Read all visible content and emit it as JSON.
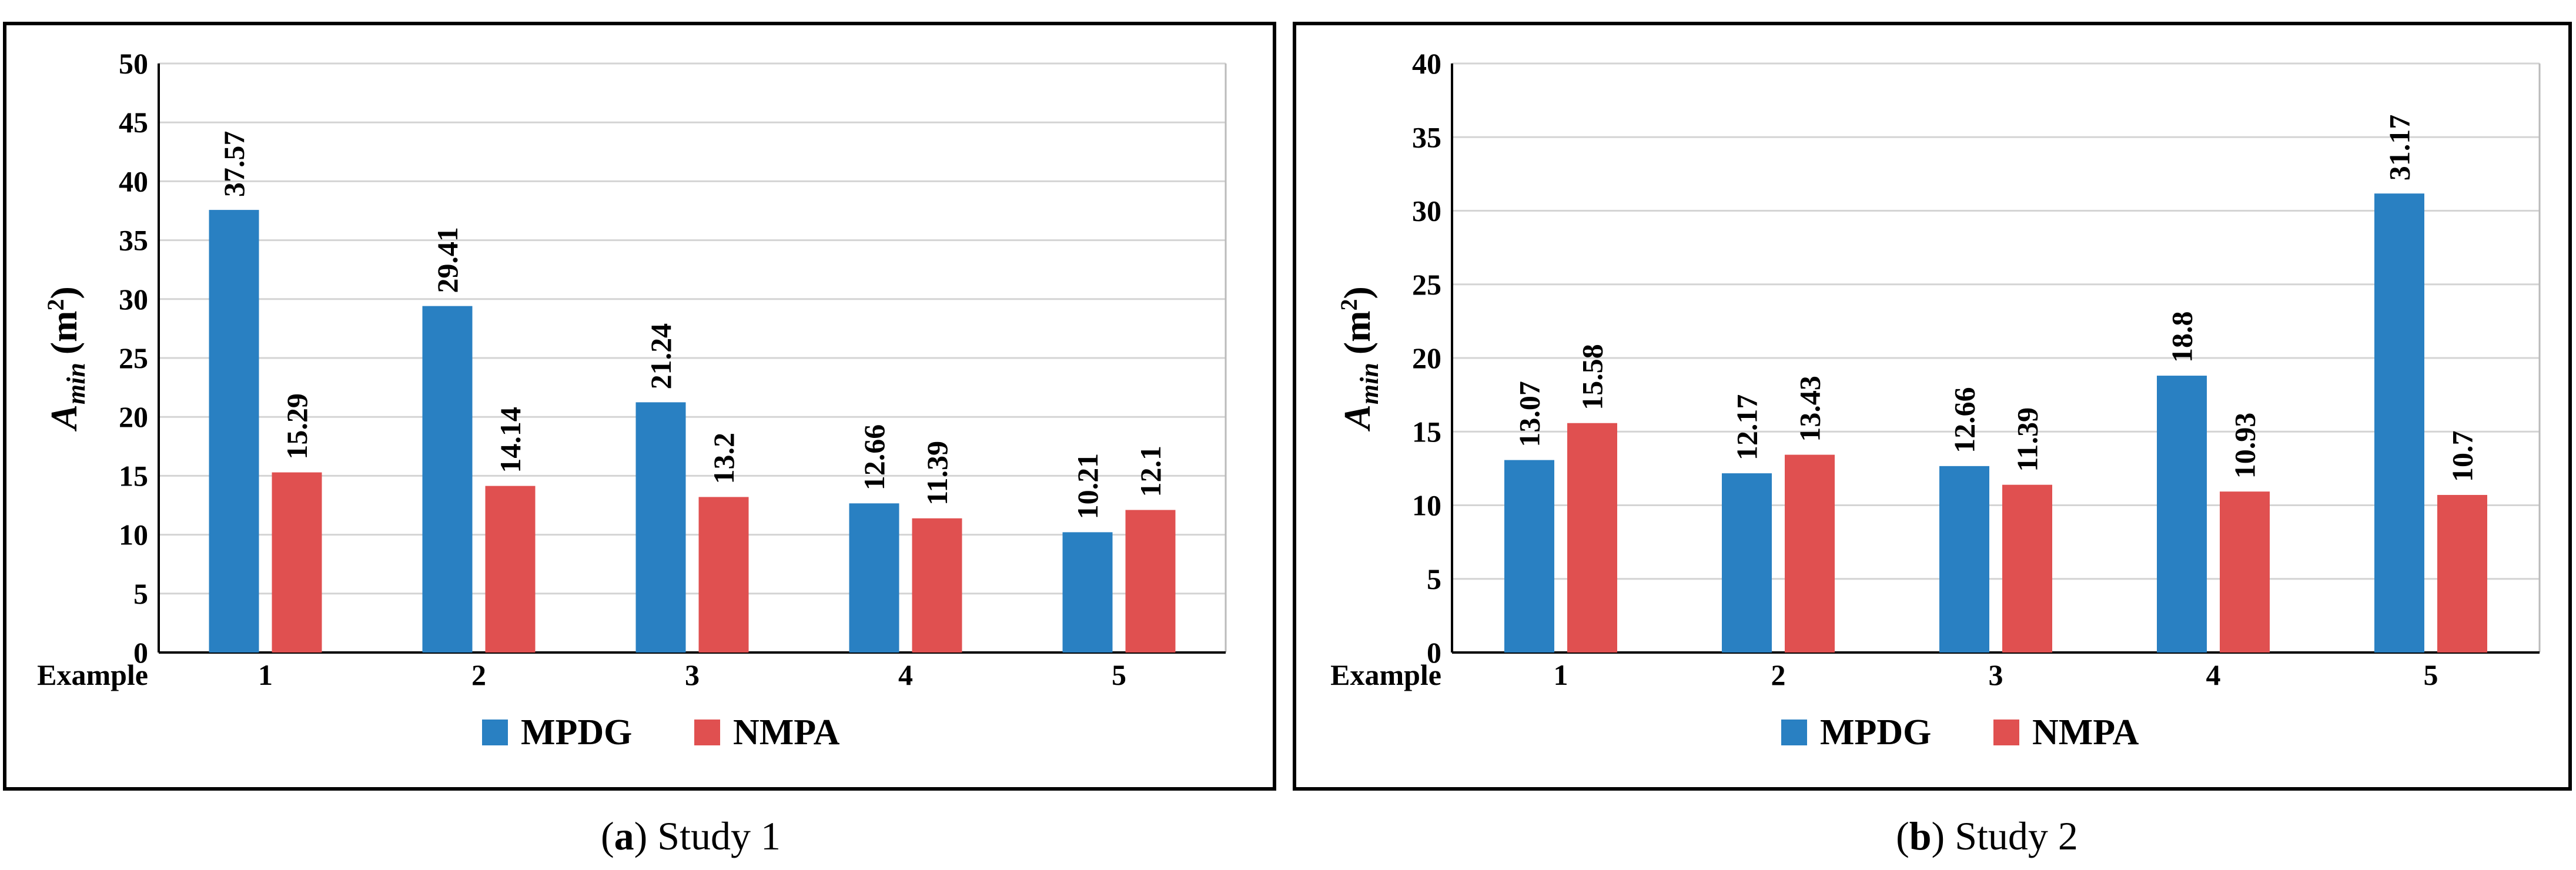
{
  "colors": {
    "MPDG": "#2980c2",
    "NMPA": "#e05050",
    "grid": "#d4d4d4"
  },
  "chart_data": [
    {
      "type": "bar",
      "panel": "a",
      "caption_letter": "a",
      "caption_text": "Study 1",
      "xcat_title": "Example",
      "categories": [
        "1",
        "2",
        "3",
        "4",
        "5"
      ],
      "series": [
        {
          "name": "MPDG",
          "values": [
            37.57,
            29.41,
            21.24,
            12.66,
            10.21
          ],
          "labels": [
            "37.57",
            "29.41",
            "21.24",
            "12.66",
            "10.21"
          ]
        },
        {
          "name": "NMPA",
          "values": [
            15.29,
            14.14,
            13.2,
            11.39,
            12.1
          ],
          "labels": [
            "15.29",
            "14.14",
            "13.2",
            "11.39",
            "12.1"
          ]
        }
      ],
      "ylabel_main": "A",
      "ylabel_sub": "min",
      "ylabel_unit": "(m",
      "ylabel_sup": "2",
      "ylabel_close": ")",
      "ylim": [
        0,
        50
      ],
      "yticks": [
        "0",
        "5",
        "10",
        "15",
        "20",
        "25",
        "30",
        "35",
        "40",
        "45",
        "50"
      ],
      "grid": true,
      "legend": "bottom"
    },
    {
      "type": "bar",
      "panel": "b",
      "caption_letter": "b",
      "caption_text": "Study 2",
      "xcat_title": "Example",
      "categories": [
        "1",
        "2",
        "3",
        "4",
        "5"
      ],
      "series": [
        {
          "name": "MPDG",
          "values": [
            13.07,
            12.17,
            12.66,
            18.8,
            31.17
          ],
          "labels": [
            "13.07",
            "12.17",
            "12.66",
            "18.8",
            "31.17"
          ]
        },
        {
          "name": "NMPA",
          "values": [
            15.58,
            13.43,
            11.39,
            10.93,
            10.7
          ],
          "labels": [
            "15.58",
            "13.43",
            "11.39",
            "10.93",
            "10.7"
          ]
        }
      ],
      "ylabel_main": "A",
      "ylabel_sub": "min",
      "ylabel_unit": "(m",
      "ylabel_sup": "2",
      "ylabel_close": ")",
      "ylim": [
        0,
        40
      ],
      "yticks": [
        "0",
        "5",
        "10",
        "15",
        "20",
        "25",
        "30",
        "35",
        "40"
      ],
      "grid": true,
      "legend": "bottom"
    }
  ]
}
